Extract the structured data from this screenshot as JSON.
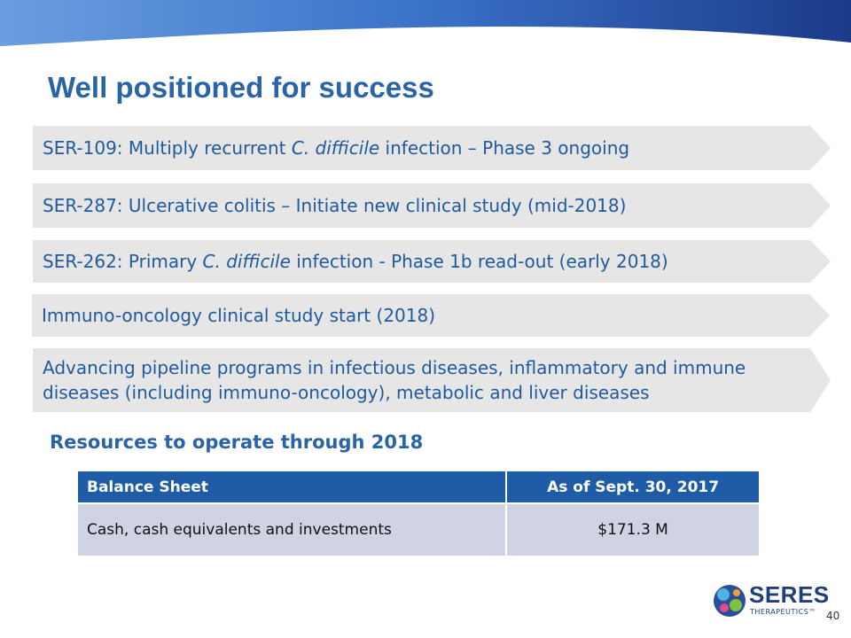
{
  "header": {
    "title": "Well positioned for success"
  },
  "items": [
    [
      {
        "text": "SER-109: Multiply recurrent "
      },
      {
        "text": "C. difficile",
        "italic": true
      },
      {
        "text": " infection – Phase 3 ongoing"
      }
    ],
    [
      {
        "text": "SER-287: Ulcerative colitis – Initiate new clinical study (mid-2018)"
      }
    ],
    [
      {
        "text": "SER-262: Primary "
      },
      {
        "text": "C. difficile",
        "italic": true
      },
      {
        "text": " infection - Phase 1b read-out (early 2018)"
      }
    ],
    [
      {
        "text": "Immuno-oncology clinical study start (2018)"
      }
    ],
    [
      {
        "text": "Advancing pipeline programs in infectious diseases, inflammatory and immune diseases (including immuno-oncology), metabolic and liver diseases"
      }
    ]
  ],
  "resources": {
    "title": "Resources to operate through 2018"
  },
  "table": {
    "header": [
      "Balance Sheet",
      "As of Sept. 30, 2017"
    ],
    "rows": [
      [
        "Cash, cash equivalents and investments",
        "$171.3 M"
      ]
    ]
  },
  "footer": {
    "logo_name": "SERES",
    "logo_sub": "THERAPEUTICS™",
    "page_number": "40"
  }
}
